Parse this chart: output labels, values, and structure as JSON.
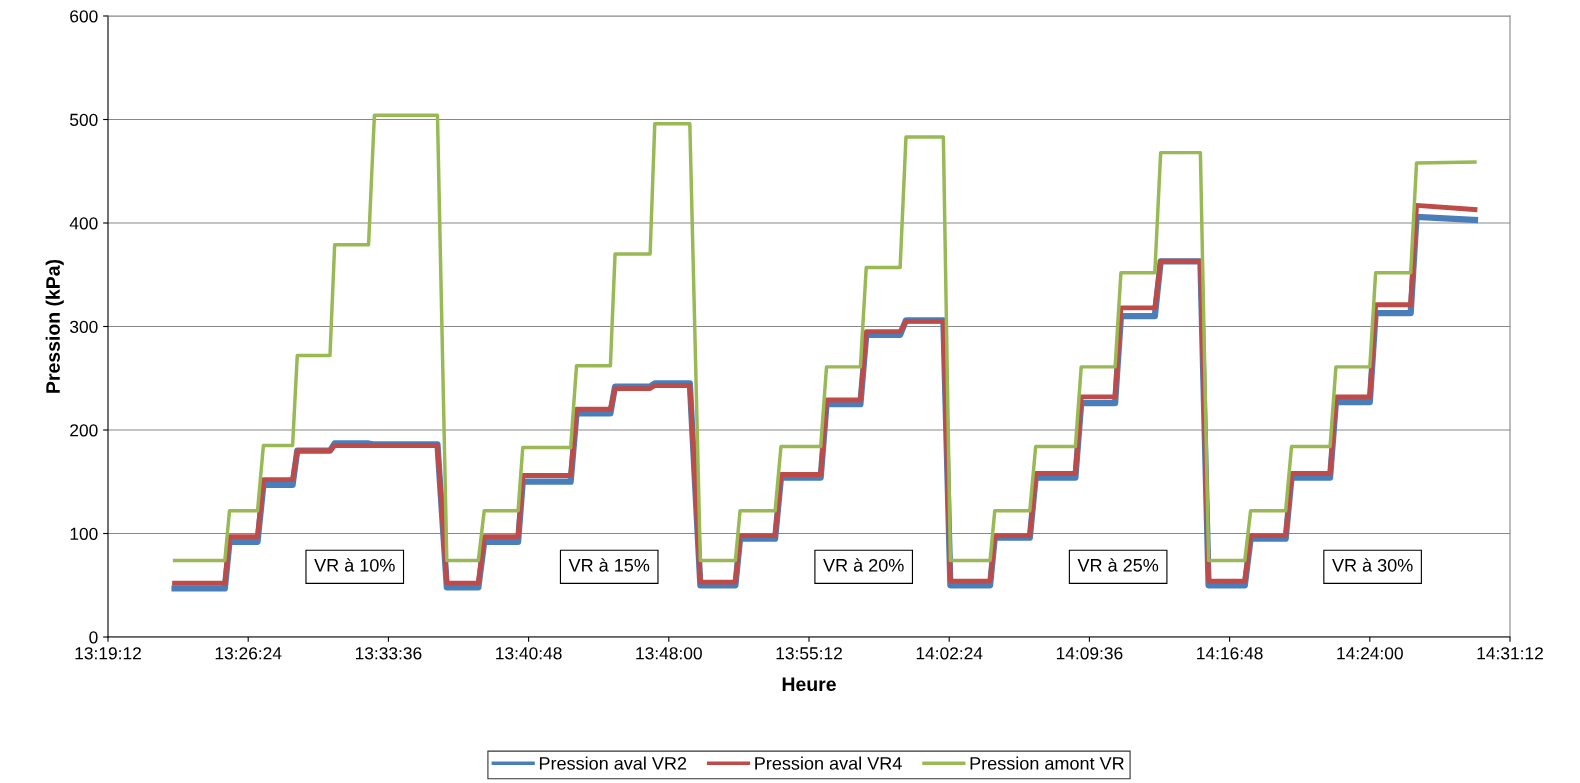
{
  "chart_data": {
    "type": "line",
    "xlabel": "Heure",
    "ylabel": "Pression (kPa)",
    "x": [
      13.377,
      13.42,
      13.424,
      13.448,
      13.453,
      13.478,
      13.482,
      13.51,
      13.514,
      13.543,
      13.548,
      13.602,
      13.61,
      13.637,
      13.642,
      13.671,
      13.675,
      13.716,
      13.721,
      13.75,
      13.754,
      13.784,
      13.788,
      13.818,
      13.827,
      13.857,
      13.861,
      13.891,
      13.896,
      13.93,
      13.935,
      13.964,
      13.969,
      13.998,
      14.003,
      14.035,
      14.041,
      14.075,
      14.079,
      14.109,
      14.114,
      14.148,
      14.153,
      14.182,
      14.187,
      14.216,
      14.221,
      14.255,
      14.262,
      14.293,
      14.298,
      14.328,
      14.333,
      14.366,
      14.371,
      14.4,
      14.405,
      14.435,
      14.44,
      14.49
    ],
    "series": [
      {
        "name": "Pression aval VR2",
        "color": "#4a7ebb",
        "values": [
          47,
          47,
          92,
          92,
          147,
          147,
          180,
          180,
          187,
          187,
          186,
          186,
          48,
          48,
          92,
          92,
          150,
          150,
          216,
          216,
          242,
          242,
          245,
          245,
          50,
          50,
          95,
          95,
          154,
          154,
          225,
          225,
          292,
          292,
          306,
          306,
          50,
          50,
          96,
          96,
          154,
          154,
          226,
          226,
          310,
          310,
          363,
          363,
          50,
          50,
          95,
          95,
          154,
          154,
          227,
          227,
          313,
          313,
          406,
          403
        ]
      },
      {
        "name": "Pression aval VR4",
        "color": "#be4b48",
        "values": [
          52,
          52,
          97,
          97,
          152,
          152,
          180,
          180,
          185,
          185,
          185,
          185,
          52,
          52,
          97,
          97,
          156,
          156,
          220,
          220,
          240,
          240,
          243,
          243,
          53,
          53,
          98,
          98,
          157,
          157,
          229,
          229,
          295,
          295,
          305,
          305,
          54,
          54,
          98,
          98,
          158,
          158,
          232,
          232,
          318,
          318,
          363,
          363,
          54,
          54,
          98,
          98,
          158,
          158,
          232,
          232,
          321,
          321,
          417,
          413
        ]
      },
      {
        "name": "Pression amont VR",
        "color": "#98b954",
        "values": [
          74,
          74,
          122,
          122,
          185,
          185,
          272,
          272,
          379,
          379,
          504,
          504,
          74,
          74,
          122,
          122,
          183,
          183,
          262,
          262,
          370,
          370,
          496,
          496,
          74,
          74,
          122,
          122,
          184,
          184,
          261,
          261,
          357,
          357,
          483,
          483,
          74,
          74,
          122,
          122,
          184,
          184,
          261,
          261,
          352,
          352,
          468,
          468,
          74,
          74,
          122,
          122,
          184,
          184,
          261,
          261,
          352,
          352,
          458,
          459
        ]
      }
    ],
    "xlim": [
      13.32,
      14.52
    ],
    "xticks": [
      {
        "value": 13.32,
        "label": "13:19:12"
      },
      {
        "value": 13.44,
        "label": "13:26:24"
      },
      {
        "value": 13.56,
        "label": "13:33:36"
      },
      {
        "value": 13.68,
        "label": "13:40:48"
      },
      {
        "value": 13.8,
        "label": "13:48:00"
      },
      {
        "value": 13.92,
        "label": "13:55:12"
      },
      {
        "value": 14.04,
        "label": "14:02:24"
      },
      {
        "value": 14.16,
        "label": "14:09:36"
      },
      {
        "value": 14.28,
        "label": "14:16:48"
      },
      {
        "value": 14.4,
        "label": "14:24:00"
      },
      {
        "value": 14.52,
        "label": "14:31:12"
      }
    ],
    "ylim": [
      0,
      600
    ],
    "yticks": [
      0,
      100,
      200,
      300,
      400,
      500,
      600
    ],
    "grid": "y",
    "legend": "bottom",
    "marker": "none",
    "line_style": "solid",
    "annotations": [
      "VR à 10%",
      "VR à 15%",
      "VR à 20%",
      "VR à 25%",
      "VR à 30%"
    ]
  }
}
